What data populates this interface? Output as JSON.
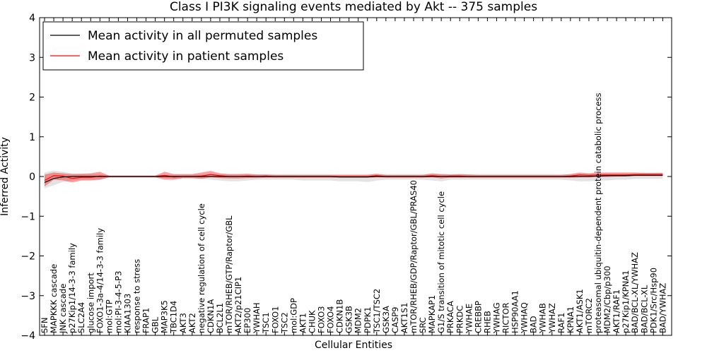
{
  "chart_data": {
    "type": "line",
    "title": "Class I PI3K signaling events mediated by Akt -- 375 samples",
    "xlabel": "Cellular Entities",
    "ylabel": "Inferred Activity",
    "ylim": [
      -4,
      4
    ],
    "yticks": [
      "4",
      "3",
      "2",
      "1",
      "0",
      "−1",
      "−2",
      "−3",
      "−4"
    ],
    "ytick_values": [
      4,
      3,
      2,
      1,
      0,
      -1,
      -2,
      -3,
      -4
    ],
    "legend": {
      "location": "top-left",
      "entries": [
        {
          "label": "Mean activity in all permuted samples",
          "color": "#000000"
        },
        {
          "label": "Mean activity in patient samples",
          "color": "#ff0000"
        }
      ]
    },
    "categories": [
      "SFN",
      "MAPKKK cascade",
      "JNK cascade",
      "p27Kip1/14-3-3 family",
      "SLC2A4",
      "glucose import",
      "FOXO1-3a-4/14-3-3 family",
      "mol:GTP",
      "mol:PI-3-4-5-P3",
      "KIAA1303",
      "response to stress",
      "FRAP1",
      "GBL",
      "MAP3K5",
      "TBC1D4",
      "AKT3",
      "AKT2",
      "negative regulation of cell cycle",
      "CDKN1A",
      "BCL2L1",
      "mTOR/RHEB/GTP/Raptor/GBL",
      "AKT2/p21CIP1",
      "EP300",
      "YWHAH",
      "TSC1",
      "FOXO1",
      "TSC2",
      "mol:GDP",
      "AKT1",
      "CHUK",
      "FOXO3",
      "FOXO4",
      "CDKN1B",
      "GSK3B",
      "MDM2",
      "PDPK1",
      "TSC1/TSC2",
      "GSK3A",
      "CASP9",
      "AKT1S1",
      "mTOR/RHEB/GDP/Raptor/GBL/PRAS40",
      "SRC",
      "MAPKAP1",
      "G1/S transition of mitotic cell cycle",
      "PRKACA",
      "PRKDC",
      "YWHAE",
      "CREBBP",
      "RHEB",
      "YWHAG",
      "RICTOR",
      "HSP90AA1",
      "YWHAQ",
      "BAD",
      "YWHAB",
      "YWHAZ",
      "RAF1",
      "KPNA1",
      "AKT1/ASK1",
      "mTORC2",
      "proteasomal ubiquitin-dependent protein catabolic process",
      "MDM2/Cbp/p300",
      "AKT1/RAF1",
      "p27Kip1/KPNA1",
      "BAD/BCL-XL/YWHAZ",
      "BAD/BCL-XL",
      "PDK1/Src/Hsp90",
      "BAD/YWHAZ"
    ],
    "series": [
      {
        "name": "Mean activity in all permuted samples",
        "color": "#000000",
        "values": [
          -0.15,
          -0.05,
          -0.01,
          0.0,
          0.0,
          0.0,
          0.0,
          0.0,
          0.0,
          0.0,
          0.0,
          0.0,
          0.0,
          0.0,
          0.0,
          0.0,
          0.0,
          0.0,
          0.0,
          0.0,
          0.0,
          0.0,
          0.0,
          0.0,
          0.0,
          0.0,
          0.0,
          0.0,
          0.0,
          0.0,
          0.0,
          0.0,
          -0.01,
          -0.01,
          -0.01,
          -0.01,
          0.0,
          0.0,
          0.0,
          0.0,
          0.0,
          0.0,
          0.0,
          0.0,
          0.0,
          0.0,
          0.0,
          0.0,
          0.0,
          0.0,
          0.0,
          0.0,
          0.0,
          0.0,
          0.0,
          0.0,
          0.0,
          0.0,
          0.0,
          0.0,
          0.01,
          0.02,
          0.02,
          0.02,
          0.03,
          0.03,
          0.03,
          0.03
        ],
        "band_upper": [
          0.1,
          0.15,
          0.12,
          0.08,
          0.06,
          0.06,
          0.06,
          0.03,
          0.03,
          0.03,
          0.03,
          0.03,
          0.03,
          0.03,
          0.05,
          0.05,
          0.05,
          0.05,
          0.05,
          0.06,
          0.06,
          0.06,
          0.06,
          0.06,
          0.06,
          0.06,
          0.06,
          0.06,
          0.06,
          0.06,
          0.06,
          0.06,
          0.06,
          0.06,
          0.06,
          0.06,
          0.06,
          0.06,
          0.06,
          0.06,
          0.06,
          0.06,
          0.06,
          0.06,
          0.06,
          0.06,
          0.06,
          0.06,
          0.06,
          0.06,
          0.06,
          0.06,
          0.06,
          0.06,
          0.06,
          0.06,
          0.06,
          0.06,
          0.06,
          0.06,
          0.07,
          0.08,
          0.08,
          0.08,
          0.08,
          0.09,
          0.09,
          0.09
        ],
        "band_lower": [
          -0.3,
          -0.22,
          -0.14,
          -0.1,
          -0.08,
          -0.08,
          -0.08,
          -0.03,
          -0.03,
          -0.03,
          -0.03,
          -0.03,
          -0.03,
          -0.03,
          -0.05,
          -0.05,
          -0.05,
          -0.05,
          -0.08,
          -0.1,
          -0.12,
          -0.12,
          -0.1,
          -0.08,
          -0.08,
          -0.08,
          -0.08,
          -0.08,
          -0.1,
          -0.1,
          -0.1,
          -0.1,
          -0.12,
          -0.12,
          -0.12,
          -0.14,
          -0.1,
          -0.08,
          -0.08,
          -0.08,
          -0.08,
          -0.08,
          -0.1,
          -0.12,
          -0.08,
          -0.08,
          -0.08,
          -0.08,
          -0.08,
          -0.08,
          -0.08,
          -0.08,
          -0.08,
          -0.08,
          -0.08,
          -0.08,
          -0.08,
          -0.1,
          -0.12,
          -0.12,
          -0.1,
          -0.1,
          -0.08,
          -0.08,
          -0.06,
          -0.06,
          -0.06,
          -0.06
        ]
      },
      {
        "name": "Mean activity in patient samples",
        "color": "#ff0000",
        "values": [
          -0.1,
          0.02,
          0.01,
          -0.05,
          -0.02,
          -0.02,
          0.01,
          0.0,
          0.0,
          0.0,
          0.0,
          0.0,
          0.0,
          0.03,
          -0.01,
          0.0,
          0.0,
          0.01,
          0.05,
          0.02,
          0.0,
          0.0,
          0.01,
          0.0,
          0.01,
          0.0,
          0.0,
          0.0,
          0.0,
          0.0,
          0.0,
          0.0,
          0.0,
          0.0,
          0.0,
          0.0,
          0.02,
          0.0,
          0.0,
          0.0,
          0.0,
          0.0,
          0.02,
          0.0,
          0.01,
          0.01,
          0.0,
          0.0,
          0.0,
          0.0,
          0.0,
          0.0,
          0.0,
          0.0,
          0.0,
          0.0,
          0.0,
          0.01,
          0.04,
          0.03,
          0.04,
          0.04,
          0.04,
          0.04,
          0.05,
          0.05,
          0.05,
          0.05
        ],
        "band_upper": [
          0.05,
          0.1,
          0.08,
          0.06,
          0.07,
          0.08,
          0.12,
          0.02,
          0.02,
          0.02,
          0.02,
          0.02,
          0.02,
          0.12,
          0.06,
          0.06,
          0.06,
          0.1,
          0.14,
          0.08,
          0.06,
          0.06,
          0.07,
          0.05,
          0.05,
          0.04,
          0.04,
          0.04,
          0.04,
          0.04,
          0.04,
          0.04,
          0.04,
          0.04,
          0.04,
          0.04,
          0.07,
          0.04,
          0.04,
          0.04,
          0.04,
          0.04,
          0.08,
          0.06,
          0.05,
          0.06,
          0.05,
          0.04,
          0.04,
          0.04,
          0.04,
          0.04,
          0.04,
          0.04,
          0.04,
          0.04,
          0.04,
          0.06,
          0.1,
          0.08,
          0.1,
          0.1,
          0.1,
          0.1,
          0.1,
          0.09,
          0.09,
          0.09
        ],
        "band_lower": [
          -0.25,
          -0.08,
          -0.1,
          -0.15,
          -0.1,
          -0.1,
          -0.08,
          -0.02,
          -0.02,
          -0.02,
          -0.02,
          -0.02,
          -0.02,
          -0.08,
          -0.08,
          -0.04,
          -0.04,
          -0.06,
          -0.02,
          -0.04,
          -0.05,
          -0.05,
          -0.04,
          -0.04,
          -0.03,
          -0.03,
          -0.03,
          -0.03,
          -0.03,
          -0.03,
          -0.03,
          -0.03,
          -0.03,
          -0.03,
          -0.03,
          -0.03,
          -0.02,
          -0.03,
          -0.03,
          -0.03,
          -0.03,
          -0.03,
          -0.02,
          -0.05,
          -0.03,
          -0.03,
          -0.03,
          -0.03,
          -0.03,
          -0.03,
          -0.03,
          -0.03,
          -0.03,
          -0.03,
          -0.03,
          -0.03,
          -0.03,
          -0.03,
          -0.02,
          -0.02,
          -0.01,
          -0.01,
          0.0,
          0.0,
          0.01,
          0.01,
          0.01,
          0.01
        ]
      }
    ]
  }
}
